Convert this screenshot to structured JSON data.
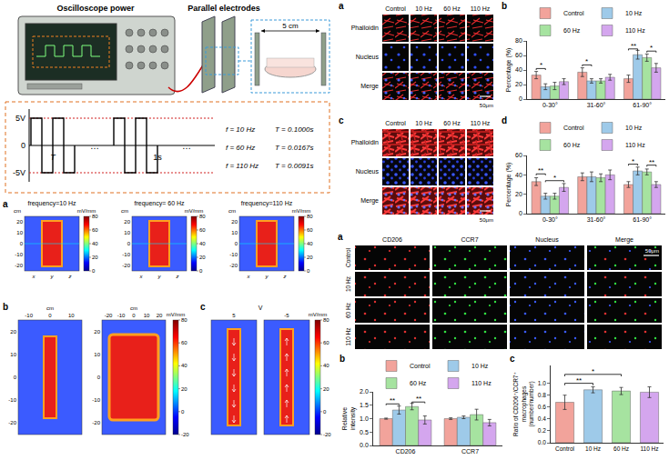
{
  "setup": {
    "instrument": "Oscilloscope power",
    "electrodes": "Parallel electrodes",
    "spacing": "5 cm",
    "waveform": {
      "levels": [
        "5V",
        "0",
        "-5V"
      ],
      "period": "T",
      "ellipsis": "…",
      "duration": "1s",
      "rows": [
        {
          "f": "f = 10 Hz",
          "T": "T = 0.1000s"
        },
        {
          "f": "f = 60 Hz",
          "T": "T = 0.0167s"
        },
        {
          "f": "f = 110 Hz",
          "T": "T = 0.0091s"
        }
      ]
    }
  },
  "simulation": {
    "a": {
      "letter": "a",
      "titles": [
        "frequency=10 Hz",
        "frequency= 60 Hz",
        "frequency=110 Hz"
      ],
      "axis_ticks": [
        20,
        10,
        0,
        -10,
        -20
      ],
      "axis_unit": "cm",
      "axis_names": [
        "x",
        "y",
        "z"
      ],
      "colorbar": {
        "unit": "mV/mm",
        "ticks": [
          0,
          20,
          40,
          60,
          80
        ]
      }
    },
    "b": {
      "letter": "b",
      "axis_unit": "cm",
      "maps": [
        {
          "top_ticks": [
            -10,
            0,
            10
          ],
          "left_ticks": [
            20,
            10,
            0,
            -10,
            -20
          ]
        },
        {
          "top_ticks": [
            -20,
            -10,
            0,
            10,
            20
          ],
          "left_ticks": [
            20,
            10,
            0,
            -10,
            -20
          ]
        }
      ],
      "colorbar": {
        "unit": "mV/mm",
        "ticks": [
          -20,
          0,
          20,
          40,
          60,
          80
        ]
      }
    },
    "c": {
      "letter": "c",
      "axis_unit": "V",
      "maps": [
        {
          "top_ticks": [
            5
          ]
        },
        {
          "top_ticks": [
            -5
          ]
        }
      ],
      "colorbar": {
        "unit": "mV/mm",
        "ticks": [
          -20,
          0,
          20,
          40,
          60,
          80
        ]
      }
    }
  },
  "staining_top": [
    {
      "letter": "a",
      "columns": [
        "Control",
        "10 Hz",
        "60 Hz",
        "110 Hz"
      ],
      "rows": [
        "Phalloidin",
        "Nucleus",
        "Merge"
      ],
      "scale_bar": "50μm"
    },
    {
      "letter": "c",
      "columns": [
        "Control",
        "10 Hz",
        "60 Hz",
        "110 Hz"
      ],
      "rows": [
        "Phalloidin",
        "Nucleus",
        "Merge"
      ],
      "scale_bar": "50μm"
    }
  ],
  "staining_bottom": {
    "letter": "a",
    "columns": [
      "CD206",
      "CCR7",
      "Nucleus",
      "Merge"
    ],
    "rows": [
      "Control",
      "10 Hz",
      "60 Hz",
      "110 Hz"
    ],
    "scale_bar": "50μm"
  },
  "chart_data": [
    {
      "type": "bar",
      "title": "b",
      "ylabel": "Percentage (%)",
      "categories": [
        "0-30°",
        "31-60°",
        "61-90°"
      ],
      "series": [
        {
          "name": "Control",
          "color": "#f2a39b",
          "values": [
            33,
            37,
            28
          ],
          "errors": [
            5,
            6,
            5
          ]
        },
        {
          "name": "10 Hz",
          "color": "#9ecae9",
          "values": [
            17,
            25,
            61
          ],
          "errors": [
            4,
            3,
            6
          ]
        },
        {
          "name": "60 Hz",
          "color": "#a6e3a0",
          "values": [
            18,
            25,
            57
          ],
          "errors": [
            5,
            3,
            5
          ]
        },
        {
          "name": "110 Hz",
          "color": "#d4a6ee",
          "values": [
            24,
            30,
            43
          ],
          "errors": [
            4,
            4,
            6
          ]
        }
      ],
      "ylim": [
        0,
        80
      ],
      "yticks": [
        0,
        20,
        40,
        60,
        80
      ],
      "legend": "top",
      "grid": false,
      "significance": [
        {
          "category": "0-30°",
          "between": [
            "Control",
            "10 Hz"
          ],
          "y": 42,
          "text": "*"
        },
        {
          "category": "31-60°",
          "between": [
            "Control",
            "10 Hz"
          ],
          "y": 47,
          "text": "*"
        },
        {
          "category": "61-90°",
          "between": [
            "Control",
            "10 Hz"
          ],
          "y": 69,
          "text": "**"
        },
        {
          "category": "61-90°",
          "between": [
            "60 Hz",
            "110 Hz"
          ],
          "y": 66,
          "text": "*"
        }
      ]
    },
    {
      "type": "bar",
      "title": "d",
      "ylabel": "Percentage (%)",
      "categories": [
        "0-30°",
        "31-60°",
        "61-90°"
      ],
      "series": [
        {
          "name": "Control",
          "color": "#f2a39b",
          "values": [
            33,
            38,
            30
          ],
          "errors": [
            4,
            4,
            3
          ]
        },
        {
          "name": "10 Hz",
          "color": "#9ecae9",
          "values": [
            18,
            38,
            44
          ],
          "errors": [
            3,
            5,
            4
          ]
        },
        {
          "name": "60 Hz",
          "color": "#a6e3a0",
          "values": [
            18,
            37,
            43
          ],
          "errors": [
            3,
            4,
            3
          ]
        },
        {
          "name": "110 Hz",
          "color": "#d4a6ee",
          "values": [
            27,
            40,
            30
          ],
          "errors": [
            4,
            5,
            3
          ]
        }
      ],
      "ylim": [
        0,
        60
      ],
      "yticks": [
        0,
        20,
        40,
        60
      ],
      "legend": "top",
      "grid": false,
      "significance": [
        {
          "category": "0-30°",
          "between": [
            "Control",
            "10 Hz"
          ],
          "y": 41,
          "text": "**"
        },
        {
          "category": "0-30°",
          "between": [
            "10 Hz",
            "110 Hz"
          ],
          "y": 34,
          "text": "*"
        },
        {
          "category": "61-90°",
          "between": [
            "Control",
            "10 Hz"
          ],
          "y": 51,
          "text": "*"
        },
        {
          "category": "61-90°",
          "between": [
            "60 Hz",
            "110 Hz"
          ],
          "y": 50,
          "text": "**"
        }
      ]
    },
    {
      "type": "bar",
      "title": "b",
      "ylabel": "Relative intensity",
      "categories": [
        "CD206",
        "CCR7"
      ],
      "series": [
        {
          "name": "Control",
          "color": "#f2a39b",
          "values": [
            1.0,
            1.0
          ],
          "errors": [
            0.02,
            0.03
          ]
        },
        {
          "name": "10 Hz",
          "color": "#9ecae9",
          "values": [
            1.32,
            1.05
          ],
          "errors": [
            0.15,
            0.05
          ]
        },
        {
          "name": "60 Hz",
          "color": "#a6e3a0",
          "values": [
            1.45,
            1.15
          ],
          "errors": [
            0.12,
            0.2
          ]
        },
        {
          "name": "110 Hz",
          "color": "#d4a6ee",
          "values": [
            0.95,
            0.85
          ],
          "errors": [
            0.15,
            0.12
          ]
        }
      ],
      "ylim": [
        0,
        2
      ],
      "yticks": [
        {
          "value": 0,
          "label": "0.0"
        },
        0.5,
        {
          "value": 1,
          "label": "1.0"
        },
        1.5,
        {
          "value": 2,
          "label": "2.0"
        }
      ],
      "legend": "top",
      "grid": false,
      "significance": [
        {
          "category": "CD206",
          "between": [
            "Control",
            "10 Hz"
          ],
          "y": 1.55,
          "text": "**"
        },
        {
          "category": "CD206",
          "between": [
            "60 Hz",
            "110 Hz"
          ],
          "y": 1.62,
          "text": "**"
        }
      ]
    },
    {
      "type": "bar",
      "title": "c",
      "ylabel": "Ratio of CD206⁺/CCR7⁺ macrophages (number/number)",
      "categories": [
        "Control",
        "10 Hz",
        "60 Hz",
        "110 Hz"
      ],
      "values": [
        0.68,
        0.89,
        0.87,
        0.85
      ],
      "errors": [
        0.12,
        0.05,
        0.06,
        0.09
      ],
      "colors": [
        "#f2a39b",
        "#9ecae9",
        "#a6e3a0",
        "#d4a6ee"
      ],
      "ylim": [
        0,
        1.3
      ],
      "yticks": [
        {
          "value": 0,
          "label": "0.0"
        },
        0.2,
        0.4,
        0.6,
        0.8,
        {
          "value": 1,
          "label": "1.0"
        }
      ],
      "grid": false,
      "significance": [
        {
          "between": [
            "Control",
            "10 Hz"
          ],
          "y": 1.0,
          "text": "**"
        },
        {
          "between": [
            "Control",
            "60 Hz"
          ],
          "y": 1.15,
          "text": "*"
        }
      ]
    }
  ]
}
